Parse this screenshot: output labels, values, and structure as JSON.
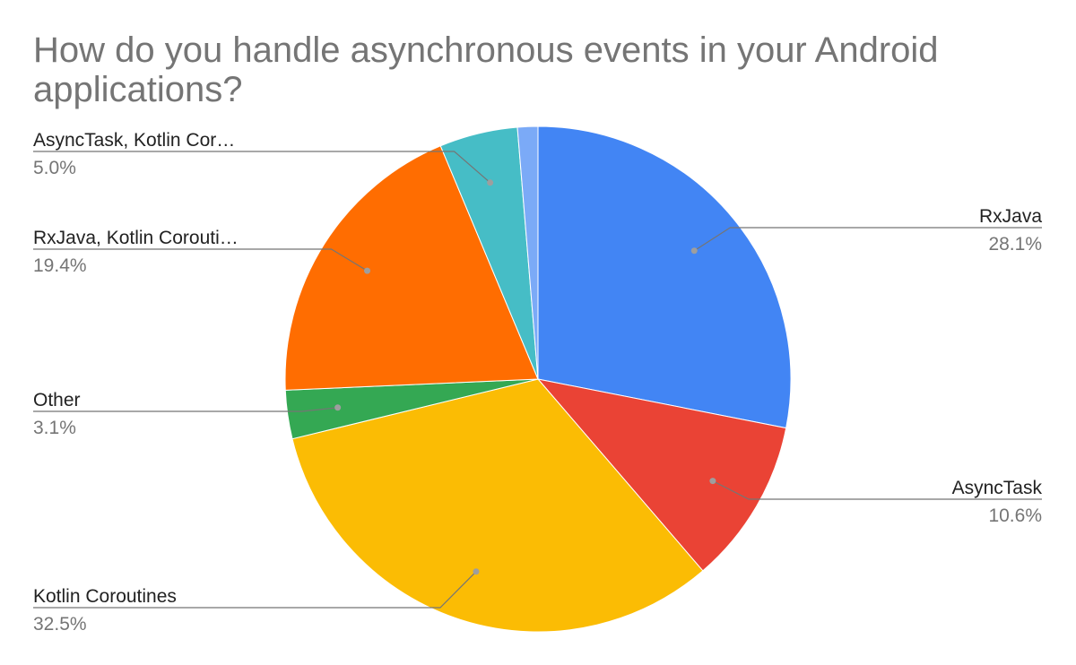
{
  "chart_data": {
    "type": "pie",
    "title": "How do you handle asynchronous events in your Android applications?",
    "label_color": "#222222",
    "value_color": "#757575",
    "leader_color": "#757575",
    "slices": [
      {
        "label": "RxJava",
        "display_label": "RxJava",
        "value": 28.1,
        "value_label": "28.1%",
        "color": "#4285F4"
      },
      {
        "label": "AsyncTask",
        "display_label": "AsyncTask",
        "value": 10.6,
        "value_label": "10.6%",
        "color": "#EA4335"
      },
      {
        "label": "Kotlin Coroutines",
        "display_label": "Kotlin Coroutines",
        "value": 32.5,
        "value_label": "32.5%",
        "color": "#FBBC04"
      },
      {
        "label": "Other",
        "display_label": "Other",
        "value": 3.1,
        "value_label": "3.1%",
        "color": "#34A853"
      },
      {
        "label": "RxJava, Kotlin Coroutines",
        "display_label": "RxJava, Kotlin Corouti…",
        "value": 19.4,
        "value_label": "19.4%",
        "color": "#FF6D01"
      },
      {
        "label": "AsyncTask, Kotlin Coroutines",
        "display_label": "AsyncTask, Kotlin Cor…",
        "value": 5.0,
        "value_label": "5.0%",
        "color": "#46BDC6"
      },
      {
        "label": "",
        "display_label": "",
        "value": 1.3,
        "value_label": "",
        "color": "#7BAAF7"
      }
    ]
  }
}
